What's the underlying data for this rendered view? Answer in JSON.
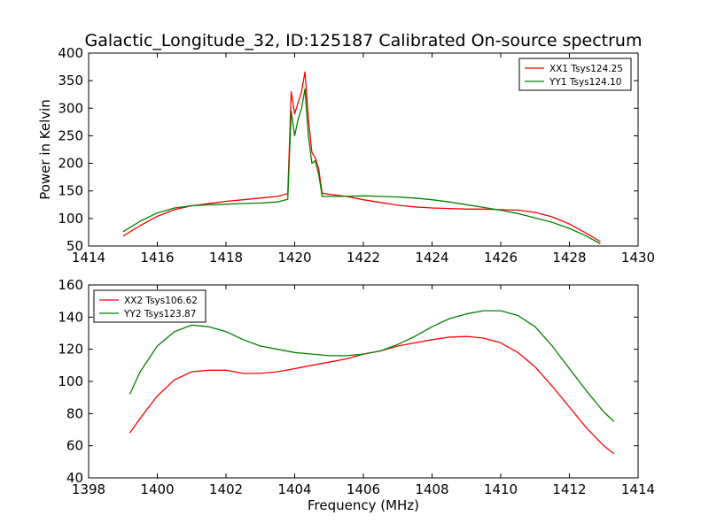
{
  "figure": {
    "title": "Galactic_Longitude_32, ID:125187 Calibrated On-source spectrum"
  },
  "chart_data": [
    {
      "type": "line",
      "ylabel": "Power in Kelvin",
      "xlabel": "",
      "xlim": [
        1414,
        1430
      ],
      "ylim": [
        50,
        400
      ],
      "xticks": [
        "1414",
        "1416",
        "1418",
        "1420",
        "1422",
        "1424",
        "1426",
        "1428",
        "1430"
      ],
      "yticks": [
        "50",
        "100",
        "150",
        "200",
        "250",
        "300",
        "350",
        "400"
      ],
      "legend_position": "top-right",
      "series": [
        {
          "name": "XX1 Tsys124.25",
          "color": "#ff0000",
          "x": [
            1415.0,
            1415.5,
            1416.0,
            1416.5,
            1417.0,
            1417.5,
            1418.0,
            1418.5,
            1419.0,
            1419.5,
            1419.8,
            1419.9,
            1420.0,
            1420.1,
            1420.2,
            1420.3,
            1420.4,
            1420.5,
            1420.6,
            1420.7,
            1420.8,
            1421.0,
            1421.5,
            1422.0,
            1422.5,
            1423.0,
            1423.5,
            1424.0,
            1424.5,
            1425.0,
            1425.5,
            1426.0,
            1426.5,
            1427.0,
            1427.5,
            1428.0,
            1428.5,
            1428.9
          ],
          "y": [
            68,
            87,
            104,
            116,
            123,
            127,
            131,
            134,
            137,
            140,
            145,
            330,
            290,
            310,
            330,
            366,
            280,
            220,
            210,
            190,
            146,
            144,
            140,
            134,
            129,
            124,
            121,
            119,
            118,
            117,
            117,
            116,
            115,
            111,
            103,
            90,
            73,
            58
          ]
        },
        {
          "name": "YY1 Tsys124.10",
          "color": "#008000",
          "x": [
            1415.0,
            1415.5,
            1416.0,
            1416.5,
            1417.0,
            1417.5,
            1418.0,
            1418.5,
            1419.0,
            1419.5,
            1419.8,
            1419.9,
            1420.0,
            1420.1,
            1420.2,
            1420.3,
            1420.4,
            1420.5,
            1420.6,
            1420.7,
            1420.8,
            1421.0,
            1421.5,
            1422.0,
            1422.5,
            1423.0,
            1423.5,
            1424.0,
            1424.5,
            1425.0,
            1425.5,
            1426.0,
            1426.5,
            1427.0,
            1427.5,
            1428.0,
            1428.5,
            1428.9
          ],
          "y": [
            76,
            95,
            110,
            119,
            123,
            125,
            126,
            127,
            128,
            130,
            135,
            295,
            250,
            280,
            300,
            335,
            250,
            200,
            205,
            180,
            140,
            140,
            140,
            141,
            140,
            139,
            137,
            134,
            130,
            125,
            120,
            115,
            109,
            101,
            93,
            82,
            68,
            54
          ]
        }
      ]
    },
    {
      "type": "line",
      "ylabel": "",
      "xlabel": "Frequency (MHz)",
      "xlim": [
        1398,
        1414
      ],
      "ylim": [
        40,
        160
      ],
      "xticks": [
        "1398",
        "1400",
        "1402",
        "1404",
        "1406",
        "1408",
        "1410",
        "1412",
        "1414"
      ],
      "yticks": [
        "40",
        "60",
        "80",
        "100",
        "120",
        "140",
        "160"
      ],
      "legend_position": "top-left",
      "series": [
        {
          "name": "XX2 Tsys106.62",
          "color": "#ff0000",
          "x": [
            1399.2,
            1399.5,
            1400.0,
            1400.5,
            1401.0,
            1401.5,
            1402.0,
            1402.5,
            1403.0,
            1403.5,
            1404.0,
            1404.5,
            1405.0,
            1405.5,
            1406.0,
            1406.5,
            1407.0,
            1407.5,
            1408.0,
            1408.5,
            1409.0,
            1409.5,
            1410.0,
            1410.5,
            1411.0,
            1411.5,
            1412.0,
            1412.5,
            1413.0,
            1413.3
          ],
          "y": [
            68,
            77,
            91,
            101,
            106,
            107,
            107,
            105,
            105,
            106,
            108,
            110,
            112,
            114,
            117,
            119,
            122,
            124,
            126,
            127.5,
            128,
            127,
            124,
            118,
            109,
            97,
            84,
            71,
            60,
            55
          ]
        },
        {
          "name": "YY2 Tsys123.87",
          "color": "#008000",
          "x": [
            1399.2,
            1399.5,
            1400.0,
            1400.5,
            1401.0,
            1401.5,
            1402.0,
            1402.5,
            1403.0,
            1403.5,
            1404.0,
            1404.5,
            1405.0,
            1405.5,
            1406.0,
            1406.5,
            1407.0,
            1407.5,
            1408.0,
            1408.5,
            1409.0,
            1409.5,
            1410.0,
            1410.5,
            1411.0,
            1411.5,
            1412.0,
            1412.5,
            1413.0,
            1413.3
          ],
          "y": [
            92,
            106,
            122,
            131,
            135,
            134,
            131,
            126,
            122,
            120,
            118,
            117,
            116,
            116,
            117,
            119,
            123,
            128,
            134,
            139,
            142,
            144,
            144,
            141,
            134,
            122,
            108,
            94,
            81,
            75
          ]
        }
      ]
    }
  ]
}
